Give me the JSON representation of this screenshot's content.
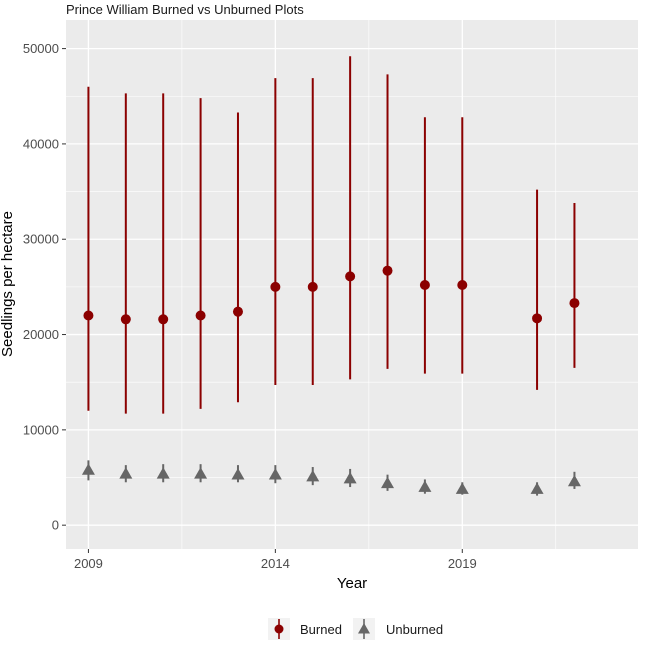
{
  "chart_data": {
    "type": "scatter",
    "title": "Prince William Burned vs Unburned Plots",
    "xlabel": "Year",
    "ylabel": "Seedlings per hectare",
    "xlim": [
      2008.4,
      2023.7
    ],
    "ylim": [
      -2500,
      53000
    ],
    "xticks": [
      2009,
      2014,
      2019
    ],
    "yticks": [
      0,
      10000,
      20000,
      30000,
      40000,
      50000
    ],
    "ytick_labels": [
      "0",
      "10000",
      "20000",
      "30000",
      "40000",
      "50000"
    ],
    "grid": true,
    "legend_position": "bottom",
    "series": [
      {
        "name": "Burned",
        "color": "#8b0000",
        "marker": "circle",
        "x": [
          2009,
          2010,
          2011,
          2012,
          2013,
          2014,
          2015,
          2016,
          2017,
          2018,
          2019,
          2021,
          2022
        ],
        "y": [
          22000,
          21600,
          21600,
          22000,
          22400,
          25000,
          25000,
          26100,
          26700,
          25200,
          25200,
          21700,
          23300
        ],
        "lower": [
          12000,
          11700,
          11700,
          12200,
          12900,
          14700,
          14700,
          15300,
          16400,
          15900,
          15900,
          14200,
          16500
        ],
        "upper": [
          46000,
          45300,
          45300,
          44800,
          43300,
          46900,
          46900,
          49200,
          47300,
          42800,
          42800,
          35200,
          33800
        ]
      },
      {
        "name": "Unburned",
        "color": "#666666",
        "marker": "triangle",
        "x": [
          2009,
          2010,
          2011,
          2012,
          2013,
          2014,
          2015,
          2016,
          2017,
          2018,
          2019,
          2021,
          2022
        ],
        "y": [
          5800,
          5400,
          5400,
          5400,
          5300,
          5300,
          5100,
          4900,
          4400,
          4000,
          3800,
          3800,
          4600
        ],
        "lower": [
          4700,
          4500,
          4500,
          4500,
          4500,
          4400,
          4200,
          4000,
          3600,
          3300,
          3200,
          3100,
          3800
        ],
        "upper": [
          6800,
          6300,
          6400,
          6400,
          6300,
          6300,
          6100,
          5900,
          5300,
          4800,
          4500,
          4500,
          5600
        ]
      }
    ]
  }
}
